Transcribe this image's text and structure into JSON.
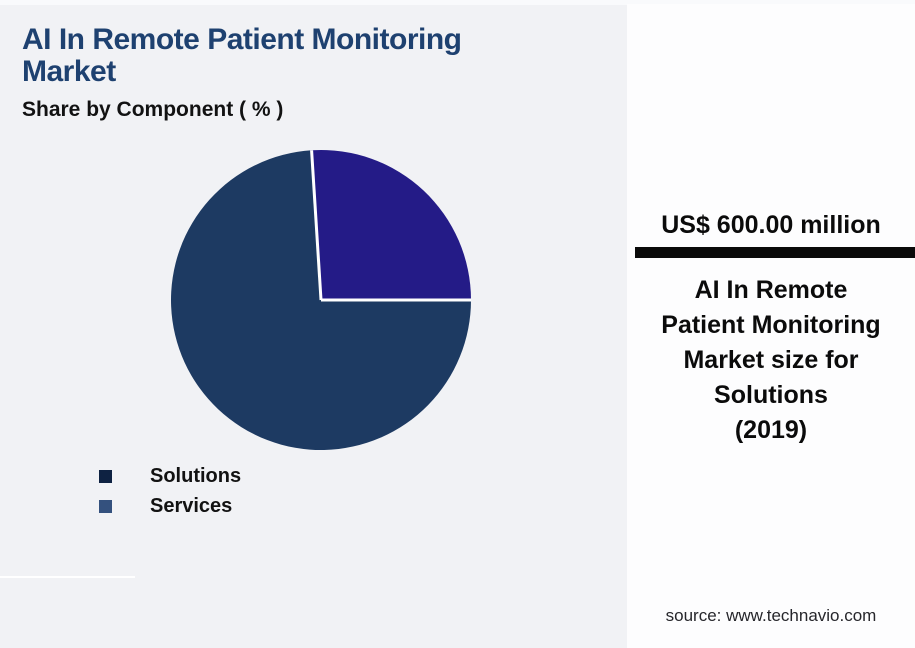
{
  "page": {
    "background": "#f1f2f5"
  },
  "header": {
    "title": "AI In Remote Patient Monitoring\nMarket",
    "subtitle": "Share by Component ( % )"
  },
  "chart_data": {
    "type": "pie",
    "title": "AI In Remote Patient Monitoring Market",
    "subtitle": "Share by Component ( % )",
    "categories": [
      "Solutions",
      "Services"
    ],
    "series": [
      {
        "name": "Solutions",
        "value": 74,
        "color": "#1d3a62",
        "legend_marker_color": "#0e2242"
      },
      {
        "name": "Services",
        "value": 26,
        "color": "#241b87",
        "legend_marker_color": "#34517e"
      }
    ],
    "start_angle_deg": 90,
    "divider_color": "#ffffff",
    "divider_width": 3,
    "legend_position": "bottom-left",
    "data_labels": "none"
  },
  "panel": {
    "value": "US$ 600.00 million",
    "description": "AI In Remote\nPatient Monitoring\nMarket size for\nSolutions\n(2019)",
    "source": "source: www.technavio.com",
    "accent_bar_color": "#0a0a0a"
  }
}
